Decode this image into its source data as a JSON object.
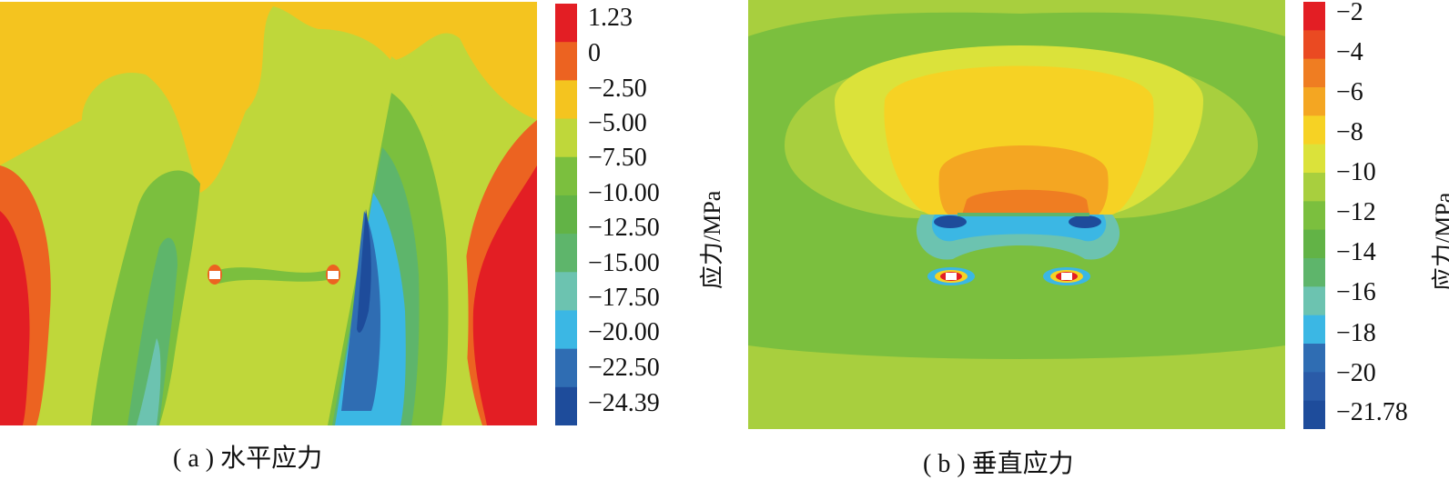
{
  "chart_data": [
    {
      "type": "heatmap",
      "caption": "( a ) 水平应力",
      "colorbar_label": "应力/MPa",
      "colorbar_levels": [
        "1.23",
        "0",
        "−2.50",
        "−5.00",
        "−7.50",
        "−10.00",
        "−12.50",
        "−15.00",
        "−17.50",
        "−20.00",
        "−22.50",
        "−24.39"
      ],
      "colorbar_colors": [
        "#e31e24",
        "#ec6321",
        "#f4c41f",
        "#bfd73a",
        "#7bbf3e",
        "#62b346",
        "#5eb56b",
        "#6cc3b0",
        "#3bb7e4",
        "#2f6db3",
        "#1e4c9b"
      ]
    },
    {
      "type": "heatmap",
      "caption": "( b ) 垂直应力",
      "colorbar_label": "应力/MPa",
      "colorbar_levels": [
        "−2",
        "−4",
        "−6",
        "−8",
        "−10",
        "−12",
        "−14",
        "−16",
        "−18",
        "−20",
        "−21.78"
      ],
      "colorbar_colors": [
        "#e31e24",
        "#ea4a22",
        "#ef7d22",
        "#f4a622",
        "#f6d224",
        "#dbe23a",
        "#a8cf3e",
        "#7bbf3e",
        "#62b346",
        "#5eb56b",
        "#6cc3b0",
        "#3bb7e4",
        "#2f6db3",
        "#2a5ba8",
        "#1e4c9b"
      ]
    }
  ]
}
